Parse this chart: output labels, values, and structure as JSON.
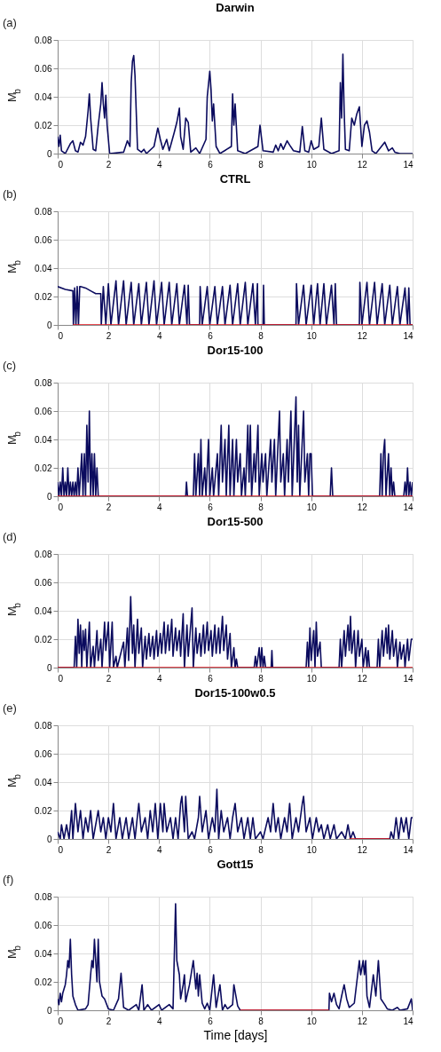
{
  "chart_data": [
    {
      "type": "line",
      "title": "Darwin",
      "ylabel": "M$_{b}$",
      "annotations": [
        "(a)"
      ],
      "xlim": [
        0,
        14
      ],
      "xticks": [
        0,
        2,
        4,
        6,
        8,
        10,
        12,
        14
      ],
      "ylim": [
        0,
        0.08
      ],
      "yticks": [
        0,
        0.02,
        0.04,
        0.06,
        0.08
      ],
      "grid": true,
      "series": [
        {
          "color": "#0b0b5e",
          "x": [
            0,
            0.05,
            0.1,
            0.15,
            0.3,
            0.5,
            0.6,
            0.7,
            0.8,
            0.9,
            1.0,
            1.1,
            1.2,
            1.25,
            1.3,
            1.4,
            1.5,
            1.6,
            1.7,
            1.75,
            1.8,
            1.85,
            1.9,
            1.95,
            2.05,
            2.6,
            2.75,
            2.85,
            2.9,
            2.95,
            3.0,
            3.05,
            3.15,
            3.3,
            3.4,
            3.5,
            3.8,
            3.95,
            4.05,
            4.15,
            4.3,
            4.4,
            4.6,
            4.7,
            4.8,
            4.85,
            4.95,
            5.05,
            5.15,
            5.25,
            5.45,
            5.6,
            5.85,
            5.9,
            6.0,
            6.05,
            6.1,
            6.15,
            6.25,
            6.4,
            6.85,
            6.9,
            6.95,
            7.0,
            7.1,
            7.4,
            7.9,
            7.98,
            8.1,
            8.5,
            8.6,
            8.7,
            8.8,
            8.9,
            9.05,
            9.15,
            9.3,
            9.55,
            9.65,
            9.75,
            9.9,
            10.0,
            10.1,
            10.3,
            10.4,
            10.5,
            10.8,
            11.1,
            11.15,
            11.2,
            11.25,
            11.3,
            11.35,
            11.5,
            11.6,
            11.7,
            11.8,
            11.9,
            12.0,
            12.1,
            12.2,
            12.3,
            12.4,
            12.55,
            12.9,
            13.05,
            13.2,
            13.3,
            13.5,
            14
          ],
          "values": [
            0.012,
            0.005,
            0.013,
            0.002,
            0,
            0.007,
            0.009,
            0.002,
            0.001,
            0.008,
            0.006,
            0.012,
            0.03,
            0.042,
            0.025,
            0.003,
            0.002,
            0.02,
            0.035,
            0.05,
            0.035,
            0.025,
            0.041,
            0.02,
            0,
            0.001,
            0.009,
            0.005,
            0.05,
            0.065,
            0.069,
            0.055,
            0.003,
            0.001,
            0.003,
            0,
            0.005,
            0.018,
            0.01,
            0.003,
            0.01,
            0.002,
            0.015,
            0.022,
            0.032,
            0.012,
            0.003,
            0.025,
            0.022,
            0.001,
            0.004,
            0,
            0.01,
            0.04,
            0.058,
            0.045,
            0.023,
            0.035,
            0.005,
            0,
            0.005,
            0.042,
            0.02,
            0.035,
            0.002,
            0,
            0.005,
            0.02,
            0.002,
            0.001,
            0.006,
            0.002,
            0.007,
            0.003,
            0.009,
            0.006,
            0.002,
            0.001,
            0.019,
            0.002,
            0.001,
            0.009,
            0.003,
            0.005,
            0.025,
            0.003,
            0,
            0.002,
            0.05,
            0.025,
            0.07,
            0.03,
            0.003,
            0.002,
            0.025,
            0.02,
            0.028,
            0.033,
            0.005,
            0.02,
            0.023,
            0.015,
            0.002,
            0,
            0.008,
            0.002,
            0.004,
            0.001,
            0,
            0
          ]
        }
      ]
    },
    {
      "type": "line",
      "title": "CTRL",
      "ylabel": "M$_{b}$",
      "annotations": [
        "(b)"
      ],
      "xlim": [
        0,
        14
      ],
      "xticks": [
        0,
        2,
        4,
        6,
        8,
        10,
        12,
        14
      ],
      "ylim": [
        0,
        0.08
      ],
      "yticks": [
        0,
        0.02,
        0.04,
        0.06,
        0.08
      ],
      "grid": true,
      "series": [
        {
          "color": "#0b0b5e",
          "x": [
            0,
            0.3,
            0.6,
            0.62,
            0.67,
            0.72,
            0.77,
            0.82,
            0.87,
            0.9,
            1.1,
            1.3,
            1.5,
            1.7,
            1.72,
            1.8,
            1.9,
            2.0,
            2.1,
            2.3,
            2.4,
            2.6,
            2.7,
            2.9,
            3.0,
            3.2,
            3.3,
            3.5,
            3.6,
            3.8,
            3.9,
            4.1,
            4.2,
            4.4,
            4.5,
            4.7,
            4.8,
            5.0,
            5.1,
            5.15,
            5.2,
            5.6,
            5.62,
            5.7,
            5.9,
            6.0,
            6.2,
            6.3,
            6.5,
            6.6,
            6.8,
            6.9,
            7.1,
            7.2,
            7.4,
            7.5,
            7.7,
            7.8,
            7.88,
            7.9,
            8.1,
            8.12,
            8.15,
            9.4,
            9.42,
            9.5,
            9.7,
            9.8,
            10.0,
            10.1,
            10.25,
            10.35,
            10.5,
            10.6,
            10.8,
            10.9,
            10.95,
            11.0,
            11.9,
            11.92,
            12.0,
            12.2,
            12.3,
            12.5,
            12.6,
            12.8,
            12.9,
            13.1,
            13.2,
            13.4,
            13.5,
            13.7,
            13.8,
            13.85,
            13.9,
            14
          ],
          "values": [
            0.027,
            0.025,
            0.024,
            0,
            0.026,
            0,
            0.027,
            0,
            0.027,
            0.027,
            0.026,
            0.024,
            0.022,
            0.022,
            0,
            0.027,
            0,
            0.029,
            0,
            0.031,
            0,
            0.031,
            0,
            0.03,
            0,
            0.029,
            0,
            0.03,
            0,
            0.031,
            0,
            0.03,
            0,
            0.03,
            0,
            0.029,
            0,
            0.028,
            0,
            0.028,
            0,
            0,
            0.027,
            0,
            0.027,
            0,
            0.027,
            0,
            0.027,
            0,
            0.028,
            0,
            0.029,
            0,
            0.03,
            0,
            0.029,
            0,
            0.029,
            0,
            0,
            0.028,
            0,
            0,
            0.029,
            0,
            0.028,
            0,
            0.028,
            0,
            0.029,
            0,
            0.029,
            0,
            0.028,
            0,
            0.029,
            0,
            0,
            0.03,
            0,
            0.03,
            0,
            0.03,
            0,
            0.029,
            0,
            0.028,
            0,
            0.027,
            0,
            0.026,
            0,
            0.026,
            0,
            0
          ]
        },
        {
          "color": "#e5101a",
          "x": [
            0.6,
            14
          ],
          "values": [
            0,
            0
          ]
        }
      ]
    },
    {
      "type": "line",
      "title": "Dor15-100",
      "ylabel": "M$_{b}$",
      "annotations": [
        "(c)"
      ],
      "xlim": [
        0,
        14
      ],
      "xticks": [
        0,
        2,
        4,
        6,
        8,
        10,
        12,
        14
      ],
      "ylim": [
        0,
        0.08
      ],
      "yticks": [
        0,
        0.02,
        0.04,
        0.06,
        0.08
      ],
      "grid": true,
      "series": [
        {
          "color": "#0b0b5e",
          "x": [
            0,
            0.05,
            0.1,
            0.15,
            0.2,
            0.25,
            0.3,
            0.35,
            0.4,
            0.45,
            0.5,
            0.55,
            0.6,
            0.65,
            0.7,
            0.75,
            0.8,
            0.85,
            0.95,
            1.0,
            1.05,
            1.1,
            1.15,
            1.2,
            1.25,
            1.3,
            1.35,
            1.4,
            1.45,
            1.5,
            1.55,
            1.6,
            5.05,
            5.08,
            5.12,
            5.35,
            5.4,
            5.45,
            5.55,
            5.6,
            5.65,
            5.7,
            5.8,
            5.85,
            5.95,
            6.0,
            6.1,
            6.15,
            6.3,
            6.35,
            6.45,
            6.5,
            6.6,
            6.65,
            6.75,
            6.8,
            6.9,
            6.95,
            7.05,
            7.1,
            7.2,
            7.25,
            7.35,
            7.4,
            7.5,
            7.55,
            7.6,
            7.65,
            7.75,
            7.8,
            7.9,
            7.95,
            8.05,
            8.1,
            8.2,
            8.25,
            8.4,
            8.45,
            8.55,
            8.6,
            8.75,
            8.8,
            8.9,
            8.95,
            9.05,
            9.1,
            9.2,
            9.25,
            9.4,
            9.45,
            9.5,
            9.55,
            9.7,
            9.75,
            9.85,
            9.9,
            9.95,
            10.0,
            10.05,
            10.75,
            10.8,
            10.85,
            12.7,
            12.75,
            12.8,
            12.85,
            12.9,
            12.95,
            13.05,
            13.1,
            13.15,
            13.2,
            13.25,
            13.3,
            13.65,
            13.7,
            13.75,
            13.8,
            13.85,
            13.9,
            13.95,
            14
          ],
          "values": [
            0.01,
            0,
            0.01,
            0,
            0.02,
            0,
            0.01,
            0,
            0.02,
            0,
            0.01,
            0,
            0.01,
            0,
            0.01,
            0,
            0.02,
            0,
            0.03,
            0,
            0.03,
            0,
            0.05,
            0.01,
            0.06,
            0,
            0.03,
            0,
            0.03,
            0,
            0.02,
            0,
            0,
            0.01,
            0,
            0,
            0.03,
            0,
            0.03,
            0,
            0.04,
            0,
            0.02,
            0,
            0.04,
            0,
            0.02,
            0,
            0.03,
            0,
            0.05,
            0.01,
            0.04,
            0,
            0.05,
            0,
            0.04,
            0,
            0.04,
            0.01,
            0.03,
            0,
            0.02,
            0,
            0.05,
            0.01,
            0.05,
            0,
            0.03,
            0.01,
            0.05,
            0,
            0.03,
            0.01,
            0.03,
            0,
            0.04,
            0.01,
            0.04,
            0,
            0.06,
            0.01,
            0.03,
            0,
            0.04,
            0.01,
            0.06,
            0,
            0.07,
            0.01,
            0.05,
            0,
            0.06,
            0.01,
            0.03,
            0,
            0.03,
            0.03,
            0,
            0,
            0.02,
            0,
            0,
            0.03,
            0,
            0.03,
            0.04,
            0,
            0.03,
            0,
            0.02,
            0,
            0.01,
            0,
            0,
            0.01,
            0,
            0.02,
            0,
            0.01,
            0,
            0.01
          ]
        },
        {
          "color": "#e5101a",
          "x": [
            0,
            14
          ],
          "values": [
            0,
            0
          ]
        }
      ]
    },
    {
      "type": "line",
      "title": "Dor15-500",
      "ylabel": "M$_{b}$",
      "annotations": [
        "(d)"
      ],
      "xlim": [
        0,
        14
      ],
      "xticks": [
        0,
        2,
        4,
        6,
        8,
        10,
        12,
        14
      ],
      "ylim": [
        0,
        0.08
      ],
      "yticks": [
        0,
        0.02,
        0.04,
        0.06,
        0.08
      ],
      "grid": true,
      "series": [
        {
          "color": "#0b0b5e",
          "x": [
            0,
            0.65,
            0.7,
            0.75,
            0.8,
            0.85,
            0.9,
            0.95,
            1.0,
            1.05,
            1.1,
            1.15,
            1.25,
            1.3,
            1.4,
            1.45,
            1.55,
            1.6,
            1.7,
            1.75,
            1.85,
            1.9,
            2.0,
            2.05,
            2.15,
            2.2,
            2.3,
            2.35,
            2.6,
            2.65,
            2.75,
            2.8,
            2.88,
            2.95,
            3.0,
            3.05,
            3.15,
            3.2,
            3.3,
            3.35,
            3.45,
            3.5,
            3.6,
            3.65,
            3.75,
            3.8,
            3.9,
            3.95,
            4.05,
            4.1,
            4.2,
            4.25,
            4.35,
            4.4,
            4.5,
            4.55,
            4.65,
            4.7,
            4.8,
            4.85,
            4.95,
            5.0,
            5.1,
            5.15,
            5.3,
            5.35,
            5.45,
            5.5,
            5.6,
            5.65,
            5.75,
            5.8,
            5.9,
            5.95,
            6.05,
            6.1,
            6.2,
            6.25,
            6.35,
            6.4,
            6.5,
            6.55,
            6.65,
            6.7,
            6.8,
            6.85,
            6.95,
            7.0,
            7.05,
            7.1,
            7.75,
            7.8,
            7.85,
            7.95,
            8.0,
            8.05,
            8.1,
            8.15,
            8.2,
            8.42,
            8.45,
            8.48,
            9.8,
            9.85,
            9.9,
            9.95,
            10.0,
            10.1,
            10.15,
            10.2,
            10.25,
            10.35,
            10.4,
            11.1,
            11.15,
            11.2,
            11.3,
            11.35,
            11.45,
            11.5,
            11.55,
            11.6,
            11.7,
            11.75,
            11.85,
            11.9,
            12.0,
            12.05,
            12.15,
            12.2,
            12.25,
            12.3,
            12.6,
            12.65,
            12.7,
            12.8,
            12.85,
            12.95,
            13.0,
            13.05,
            13.1,
            13.2,
            13.25,
            13.35,
            13.4,
            13.5,
            13.55,
            13.65,
            13.7,
            13.8,
            13.85,
            13.95,
            14
          ],
          "values": [
            0,
            0,
            0.022,
            0,
            0.034,
            0.01,
            0.03,
            0,
            0.026,
            0.012,
            0.027,
            0,
            0.032,
            0,
            0.015,
            0,
            0.026,
            0.005,
            0.02,
            0,
            0.032,
            0.012,
            0.032,
            0,
            0.032,
            0,
            0.008,
            0,
            0.018,
            0,
            0.028,
            0.005,
            0.05,
            0.01,
            0.03,
            0,
            0.034,
            0.01,
            0.028,
            0,
            0.022,
            0.006,
            0.024,
            0.008,
            0.022,
            0.006,
            0.026,
            0.008,
            0.024,
            0.01,
            0.032,
            0.01,
            0.03,
            0.012,
            0.034,
            0.008,
            0.028,
            0.012,
            0.026,
            0.008,
            0.038,
            0,
            0.03,
            0.008,
            0.042,
            0,
            0.028,
            0.01,
            0.024,
            0.008,
            0.03,
            0.01,
            0.032,
            0.012,
            0.026,
            0.008,
            0.03,
            0.01,
            0.028,
            0.01,
            0.036,
            0.012,
            0.03,
            0.006,
            0.024,
            0,
            0.014,
            0,
            0.006,
            0,
            0,
            0.008,
            0,
            0.014,
            0,
            0.014,
            0,
            0.008,
            0,
            0,
            0.012,
            0,
            0,
            0.018,
            0,
            0.028,
            0.005,
            0.026,
            0,
            0.032,
            0.008,
            0.018,
            0,
            0,
            0.02,
            0,
            0.026,
            0.008,
            0.03,
            0.012,
            0.036,
            0.01,
            0.026,
            0,
            0.026,
            0.008,
            0.02,
            0,
            0.014,
            0,
            0.012,
            0,
            0,
            0.02,
            0,
            0.026,
            0.008,
            0.028,
            0.01,
            0.03,
            0.006,
            0.026,
            0.008,
            0.02,
            0,
            0.018,
            0.006,
            0.016,
            0,
            0.02,
            0.005,
            0.02,
            0.02
          ]
        },
        {
          "color": "#e5101a",
          "x": [
            0,
            14
          ],
          "values": [
            0,
            0
          ]
        }
      ]
    },
    {
      "type": "line",
      "title": "Dor15-100w0.5",
      "ylabel": "M$_{b}$",
      "annotations": [
        "(e)"
      ],
      "xlim": [
        0,
        14
      ],
      "xticks": [
        0,
        2,
        4,
        6,
        8,
        10,
        12,
        14
      ],
      "ylim": [
        0,
        0.08
      ],
      "yticks": [
        0,
        0.02,
        0.04,
        0.06,
        0.08
      ],
      "grid": true,
      "series": [
        {
          "color": "#0b0b5e",
          "x": [
            0,
            0.1,
            0.15,
            0.25,
            0.35,
            0.45,
            0.55,
            0.6,
            0.7,
            0.8,
            0.9,
            1.0,
            1.1,
            1.2,
            1.3,
            1.4,
            1.6,
            1.7,
            1.8,
            1.9,
            2.0,
            2.1,
            2.2,
            2.3,
            2.45,
            2.55,
            2.7,
            2.8,
            2.95,
            3.05,
            3.2,
            3.3,
            3.45,
            3.55,
            3.65,
            3.75,
            3.85,
            3.95,
            4.05,
            4.15,
            4.2,
            4.3,
            4.45,
            4.55,
            4.65,
            4.75,
            4.85,
            4.9,
            5.0,
            5.05,
            5.15,
            5.3,
            5.4,
            5.55,
            5.6,
            5.7,
            5.85,
            5.95,
            6.1,
            6.2,
            6.28,
            6.35,
            6.45,
            6.55,
            6.7,
            6.8,
            6.9,
            7.0,
            7.1,
            7.25,
            7.35,
            7.5,
            7.6,
            7.7,
            7.8,
            8.0,
            8.1,
            8.3,
            8.4,
            8.5,
            8.6,
            8.7,
            8.8,
            8.95,
            9.05,
            9.15,
            9.25,
            9.4,
            9.5,
            9.65,
            9.7,
            9.8,
            9.95,
            10.05,
            10.2,
            10.3,
            10.4,
            10.5,
            10.65,
            10.75,
            10.9,
            11.0,
            11.2,
            11.35,
            11.45,
            11.55,
            11.65,
            11.75,
            13.1,
            13.15,
            13.25,
            13.35,
            13.45,
            13.55,
            13.65,
            13.75,
            13.85,
            13.95,
            14
          ],
          "values": [
            0.005,
            0,
            0.01,
            0,
            0.01,
            0,
            0.02,
            0,
            0.025,
            0.005,
            0.02,
            0,
            0.015,
            0.005,
            0.02,
            0,
            0.02,
            0.005,
            0.015,
            0,
            0.015,
            0.005,
            0.025,
            0,
            0.015,
            0,
            0.015,
            0,
            0.015,
            0,
            0.025,
            0.005,
            0.015,
            0,
            0.02,
            0.005,
            0.025,
            0,
            0.025,
            0.005,
            0.025,
            0.005,
            0.015,
            0,
            0.015,
            0,
            0.025,
            0.03,
            0.005,
            0.03,
            0,
            0.005,
            0,
            0.015,
            0.03,
            0.005,
            0.02,
            0,
            0.015,
            0.005,
            0.035,
            0,
            0.02,
            0.005,
            0.015,
            0,
            0.015,
            0.025,
            0.005,
            0.015,
            0,
            0.015,
            0,
            0.015,
            0,
            0.005,
            0,
            0.015,
            0.005,
            0.025,
            0.005,
            0.015,
            0,
            0.015,
            0.005,
            0.025,
            0,
            0.015,
            0.005,
            0.025,
            0.03,
            0.005,
            0.015,
            0,
            0.015,
            0.005,
            0.01,
            0,
            0.01,
            0,
            0.01,
            0,
            0.005,
            0,
            0.01,
            0,
            0.005,
            0,
            0,
            0.005,
            0,
            0.015,
            0,
            0.015,
            0.005,
            0.015,
            0,
            0.015,
            0.015
          ]
        },
        {
          "color": "#e5101a",
          "x": [
            11.5,
            13.1
          ],
          "values": [
            0,
            0
          ]
        }
      ]
    },
    {
      "type": "line",
      "title": "Gott15",
      "ylabel": "M$_{b}$",
      "xlabel": "Time [days]",
      "annotations": [
        "(f)"
      ],
      "xlim": [
        0,
        14
      ],
      "xticks": [
        0,
        2,
        4,
        6,
        8,
        10,
        12,
        14
      ],
      "ylim": [
        0,
        0.08
      ],
      "yticks": [
        0,
        0.02,
        0.04,
        0.06,
        0.08
      ],
      "grid": true,
      "series": [
        {
          "color": "#0b0b5e",
          "x": [
            0,
            0.05,
            0.1,
            0.15,
            0.2,
            0.3,
            0.35,
            0.4,
            0.45,
            0.5,
            0.55,
            0.6,
            0.7,
            0.8,
            1.1,
            1.2,
            1.3,
            1.35,
            1.4,
            1.45,
            1.5,
            1.55,
            1.6,
            1.65,
            1.75,
            1.85,
            2.0,
            2.2,
            2.4,
            2.5,
            2.6,
            2.8,
            3.1,
            3.2,
            3.33,
            3.4,
            3.55,
            3.7,
            4.0,
            4.1,
            4.4,
            4.55,
            4.65,
            4.7,
            4.8,
            4.85,
            4.95,
            5.0,
            5.05,
            5.2,
            5.35,
            5.45,
            5.5,
            5.55,
            5.6,
            5.7,
            5.8,
            5.9,
            6.0,
            6.15,
            6.25,
            6.4,
            6.5,
            6.6,
            6.7,
            6.9,
            6.95,
            7.1,
            7.2,
            10.7,
            10.72,
            10.8,
            10.9,
            11.0,
            11.1,
            11.2,
            11.3,
            11.4,
            11.5,
            11.7,
            11.8,
            11.9,
            11.95,
            12.05,
            12.1,
            12.15,
            12.2,
            12.3,
            12.45,
            12.55,
            12.65,
            12.75,
            12.9,
            13.0,
            13.2,
            13.4,
            13.5,
            13.8,
            13.95,
            14
          ],
          "values": [
            0.008,
            0.004,
            0.012,
            0.006,
            0.012,
            0.018,
            0.025,
            0.035,
            0.03,
            0.05,
            0.025,
            0.01,
            0.004,
            0,
            0.001,
            0.004,
            0.025,
            0.035,
            0.03,
            0.05,
            0.035,
            0.02,
            0.05,
            0.02,
            0.01,
            0.008,
            0.001,
            0,
            0.008,
            0.026,
            0.002,
            0,
            0.004,
            0,
            0.018,
            0,
            0.004,
            0,
            0.004,
            0,
            0.004,
            0.001,
            0.075,
            0.035,
            0.025,
            0.008,
            0.018,
            0.025,
            0.006,
            0.018,
            0.035,
            0.015,
            0.026,
            0.01,
            0.025,
            0.005,
            0.001,
            0.005,
            0,
            0.025,
            0.002,
            0.018,
            0,
            0.004,
            0.001,
            0.004,
            0.018,
            0.003,
            0,
            0,
            0.012,
            0.006,
            0.012,
            0.004,
            0.001,
            0.01,
            0.018,
            0.008,
            0.002,
            0.005,
            0.02,
            0.035,
            0.025,
            0.035,
            0.025,
            0.035,
            0.01,
            0.002,
            0.025,
            0.01,
            0.035,
            0.008,
            0.004,
            0.001,
            0,
            0.002,
            0,
            0.001,
            0.008,
            0
          ]
        },
        {
          "color": "#e5101a",
          "x": [
            7.2,
            10.7
          ],
          "values": [
            0,
            0
          ]
        }
      ]
    }
  ]
}
